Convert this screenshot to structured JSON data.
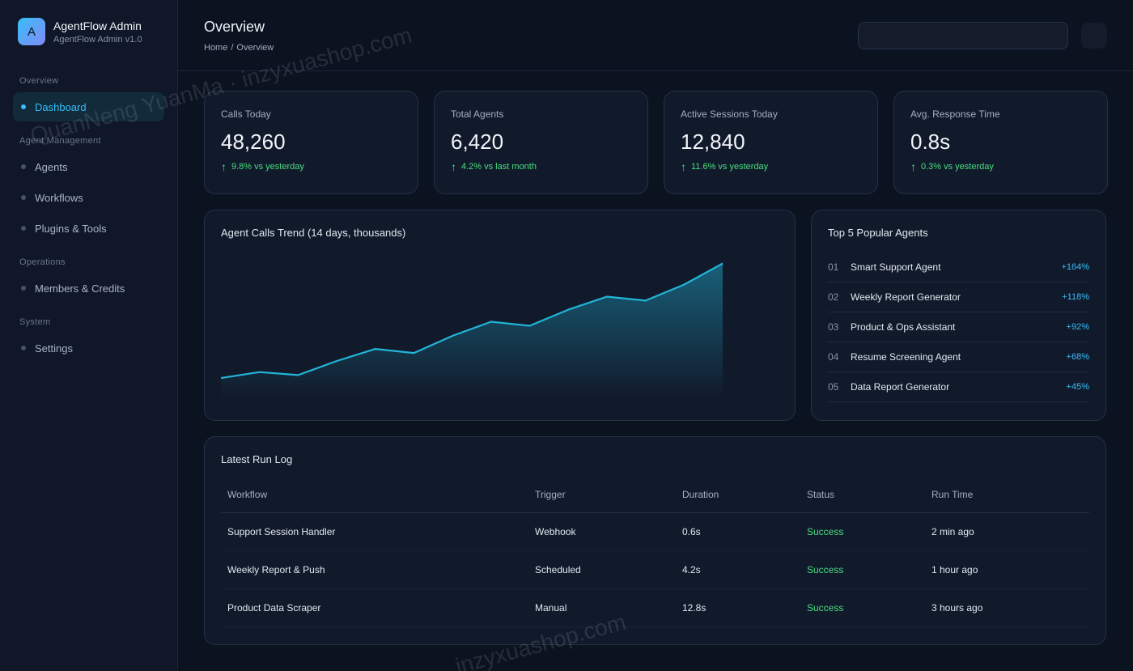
{
  "brand": {
    "logo_letter": "A",
    "title": "AgentFlow Admin",
    "subtitle": "AgentFlow Admin v1.0"
  },
  "sidebar": {
    "sections": [
      {
        "label": "Overview",
        "items": [
          {
            "label": "Dashboard",
            "active": true
          }
        ]
      },
      {
        "label": "Agent Management",
        "items": [
          {
            "label": "Agents"
          },
          {
            "label": "Workflows"
          },
          {
            "label": "Plugins & Tools"
          }
        ]
      },
      {
        "label": "Operations",
        "items": [
          {
            "label": "Members & Credits"
          }
        ]
      },
      {
        "label": "System",
        "items": [
          {
            "label": "Settings"
          }
        ]
      }
    ]
  },
  "header": {
    "title": "Overview",
    "breadcrumb": [
      "Home",
      "Overview"
    ],
    "breadcrumb_sep": "/"
  },
  "stats": [
    {
      "label": "Calls Today",
      "value": "48,260",
      "delta": "9.8% vs yesterday"
    },
    {
      "label": "Total Agents",
      "value": "6,420",
      "delta": "4.2% vs last month"
    },
    {
      "label": "Active Sessions Today",
      "value": "12,840",
      "delta": "11.6% vs yesterday"
    },
    {
      "label": "Avg. Response Time",
      "value": "0.8s",
      "delta": "0.3% vs yesterday"
    }
  ],
  "trend": {
    "title": "Agent Calls Trend (14 days, thousands)",
    "chart_data": {
      "type": "area",
      "title": "Agent Calls Trend (14 days, thousands)",
      "series": [
        {
          "values": [
            20,
            26,
            23,
            37,
            49,
            45,
            62,
            76,
            72,
            88,
            101,
            97,
            113,
            134
          ]
        }
      ],
      "ylim": [
        0,
        140
      ],
      "grid": false,
      "color": "#22b5d8"
    }
  },
  "top5": {
    "title": "Top 5 Popular Agents",
    "items": [
      {
        "rank": "01",
        "name": "Smart Support Agent",
        "delta": "+164%"
      },
      {
        "rank": "02",
        "name": "Weekly Report Generator",
        "delta": "+118%"
      },
      {
        "rank": "03",
        "name": "Product & Ops Assistant",
        "delta": "+92%"
      },
      {
        "rank": "04",
        "name": "Resume Screening Agent",
        "delta": "+68%"
      },
      {
        "rank": "05",
        "name": "Data Report Generator",
        "delta": "+45%"
      }
    ]
  },
  "log": {
    "title": "Latest Run Log",
    "columns": [
      "Workflow",
      "Trigger",
      "Duration",
      "Status",
      "Run Time"
    ],
    "rows": [
      [
        "Support Session Handler",
        "Webhook",
        "0.6s",
        "Success",
        "2 min ago"
      ],
      [
        "Weekly Report & Push",
        "Scheduled",
        "4.2s",
        "Success",
        "1 hour ago"
      ],
      [
        "Product Data Scraper",
        "Manual",
        "12.8s",
        "Success",
        "3 hours ago"
      ]
    ]
  },
  "watermark": {
    "text1": "QuanNeng YuanMa · inzyxuashop.com",
    "text2": "inzyxuashop.com"
  },
  "icons": {
    "delta": "arrow-up-icon",
    "nav": "dot-icon"
  },
  "colors": {
    "accent": "#38bdf8",
    "success": "#4ade80",
    "bg": "#0b1220"
  }
}
